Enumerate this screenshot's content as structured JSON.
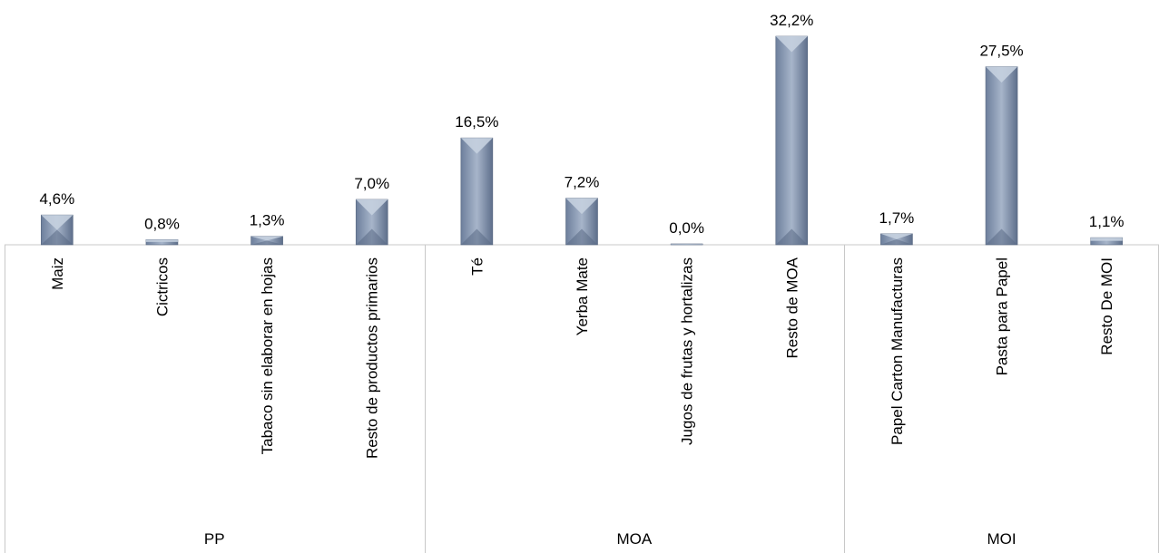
{
  "chart_data": {
    "type": "bar",
    "categories": [
      "Maiz",
      "Cictricos",
      "Tabaco sin elaborar en hojas",
      "Resto de productos primarios",
      "Té",
      "Yerba Mate",
      "Jugos de frutas y hortalizas",
      "Resto de MOA",
      "Papel Carton Manufacturas",
      "Pasta para Papel",
      "Resto De MOI"
    ],
    "values": [
      4.6,
      0.8,
      1.3,
      7.0,
      16.5,
      7.2,
      0.0,
      32.2,
      1.7,
      27.5,
      1.1
    ],
    "data_labels": [
      "4,6%",
      "0,8%",
      "1,3%",
      "7,0%",
      "16,5%",
      "7,2%",
      "0,0%",
      "32,2%",
      "1,7%",
      "27,5%",
      "1,1%"
    ],
    "groups": [
      {
        "name": "PP",
        "size": 4
      },
      {
        "name": "MOA",
        "size": 4
      },
      {
        "name": "MOI",
        "size": 3
      }
    ],
    "ylim": [
      0,
      32.2
    ],
    "unit": "%",
    "grid": false,
    "legend": "none",
    "bar_color": "#8a9bb5"
  }
}
